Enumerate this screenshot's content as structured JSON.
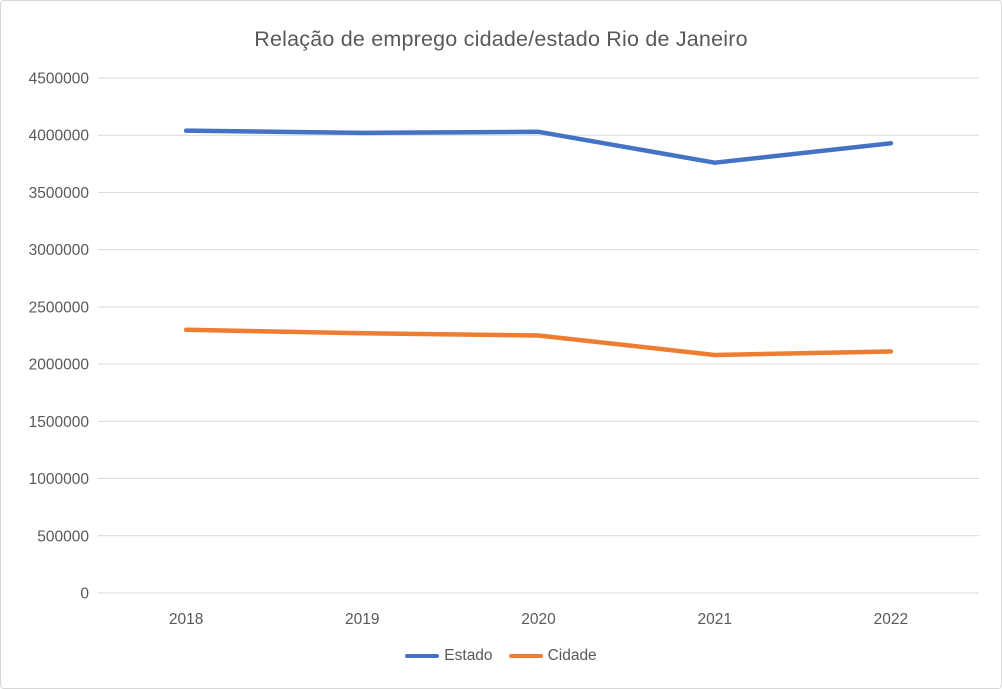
{
  "window": {
    "background": "#ffffff",
    "border_color": "#d7d7d7"
  },
  "chart_data": {
    "type": "line",
    "title": "Relação de emprego cidade/estado Rio de Janeiro",
    "categories": [
      "2018",
      "2019",
      "2020",
      "2021",
      "2022"
    ],
    "series": [
      {
        "name": "Estado",
        "color": "#4472C4",
        "values": [
          4040000,
          4020000,
          4030000,
          3760000,
          3930000
        ]
      },
      {
        "name": "Cidade",
        "color": "#ED7D31",
        "values": [
          2300000,
          2270000,
          2250000,
          2080000,
          2110000
        ]
      }
    ],
    "xlabel": "",
    "ylabel": "",
    "ylim": [
      0,
      4500000
    ],
    "ytick_step": 500000,
    "ytick_labels": [
      "0",
      "500000",
      "1000000",
      "1500000",
      "2000000",
      "2500000",
      "3000000",
      "3500000",
      "4000000",
      "4500000"
    ],
    "grid": true,
    "gridline_color": "#d9d9d9",
    "text_color": "#595959",
    "legend_position": "bottom",
    "legend_entries": [
      "Estado",
      "Cidade"
    ]
  }
}
